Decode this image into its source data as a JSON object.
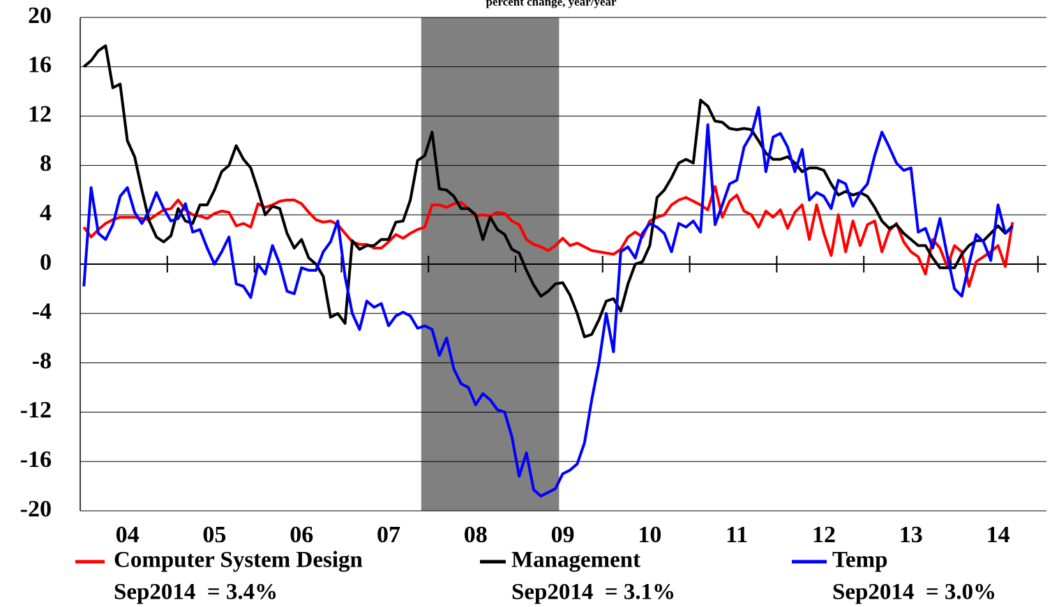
{
  "chart_data": {
    "type": "line",
    "subtitle": "percent change, year/year",
    "categories": [
      null,
      null,
      null,
      null,
      null,
      null,
      "04",
      null,
      null,
      null,
      null,
      null,
      null,
      null,
      null,
      null,
      null,
      null,
      "05",
      null,
      null,
      null,
      null,
      null,
      null,
      null,
      null,
      null,
      null,
      null,
      "06",
      null,
      null,
      null,
      null,
      null,
      null,
      null,
      null,
      null,
      null,
      null,
      "07",
      null,
      null,
      null,
      null,
      null,
      null,
      null,
      null,
      null,
      null,
      null,
      "08",
      null,
      null,
      null,
      null,
      null,
      null,
      null,
      null,
      null,
      null,
      null,
      "09",
      null,
      null,
      null,
      null,
      null,
      null,
      null,
      null,
      null,
      null,
      null,
      "10",
      null,
      null,
      null,
      null,
      null,
      null,
      null,
      null,
      null,
      null,
      null,
      "11",
      null,
      null,
      null,
      null,
      null,
      null,
      null,
      null,
      null,
      null,
      null,
      "12",
      null,
      null,
      null,
      null,
      null,
      null,
      null,
      null,
      null,
      null,
      null,
      "13",
      null,
      null,
      null,
      null,
      null,
      null,
      null,
      null,
      null,
      null,
      null,
      "14",
      null,
      null
    ],
    "shaded_range": [
      47,
      65
    ],
    "shade_color": "#808080",
    "ylim": [
      -20,
      20
    ],
    "yticks": [
      -20,
      -16,
      -12,
      -8,
      -4,
      0,
      4,
      8,
      12,
      16,
      20
    ],
    "grid": true,
    "legend": "bottom",
    "series": [
      {
        "name": "Computer System Design",
        "color": "#ff0000",
        "note": "Sep2014  = 3.4%",
        "values": [
          3.0,
          2.2,
          2.8,
          3.3,
          3.6,
          3.8,
          3.8,
          3.8,
          3.7,
          3.6,
          4.0,
          4.4,
          4.5,
          5.2,
          4.4,
          4.0,
          3.9,
          3.7,
          4.1,
          4.3,
          4.2,
          3.1,
          3.3,
          3.0,
          4.9,
          4.6,
          4.8,
          5.1,
          5.2,
          5.2,
          4.9,
          4.2,
          3.6,
          3.4,
          3.5,
          3.2,
          2.5,
          1.8,
          1.6,
          1.6,
          1.3,
          1.3,
          1.8,
          2.4,
          2.1,
          2.5,
          2.8,
          3.0,
          4.8,
          4.8,
          4.6,
          4.9,
          5.0,
          4.5,
          3.9,
          4.0,
          3.9,
          4.2,
          4.1,
          3.5,
          3.2,
          2.0,
          1.6,
          1.4,
          1.1,
          1.5,
          2.1,
          1.5,
          1.7,
          1.4,
          1.1,
          1.0,
          0.9,
          0.8,
          1.2,
          2.2,
          2.6,
          2.2,
          3.5,
          3.8,
          4.0,
          4.8,
          5.2,
          5.4,
          5.1,
          4.8,
          4.4,
          6.3,
          3.8,
          5.1,
          5.6,
          4.3,
          4.0,
          3.0,
          4.3,
          3.8,
          4.4,
          2.9,
          4.2,
          4.8,
          2.0,
          4.8,
          2.5,
          0.7,
          4.0,
          1.0,
          3.5,
          1.5,
          3.2,
          3.5,
          1.0,
          2.7,
          3.3,
          1.8,
          1.0,
          0.6,
          -0.8,
          2.0,
          1.3,
          -0.2,
          1.5,
          1.0,
          -1.8,
          0.2,
          0.6,
          1.0,
          1.5,
          -0.2,
          3.4
        ]
      },
      {
        "name": "Management",
        "color": "#000000",
        "note": "Sep2014  = 3.1%",
        "values": [
          16,
          16.5,
          17.3,
          17.7,
          14.3,
          14.6,
          10,
          8.7,
          6,
          3.5,
          2.2,
          1.8,
          2.3,
          4.5,
          3.5,
          3.3,
          4.8,
          4.8,
          6,
          7.5,
          8,
          9.6,
          8.5,
          7.8,
          6,
          4,
          4.7,
          4.5,
          2.5,
          1.3,
          2,
          0.5,
          0,
          -1,
          -4.3,
          -4,
          -4.8,
          1.9,
          1.2,
          1.5,
          1.5,
          2,
          2,
          3.4,
          3.5,
          5.2,
          8.4,
          8.8,
          10.7,
          6.1,
          6,
          5.5,
          4.5,
          4.5,
          4,
          2,
          3.8,
          2.8,
          2.4,
          1.2,
          0.9,
          -0.5,
          -1.7,
          -2.6,
          -2.2,
          -1.6,
          -1.5,
          -2.5,
          -4,
          -5.9,
          -5.7,
          -4.5,
          -3,
          -2.8,
          -3.8,
          -1.6,
          0,
          0.2,
          1.5,
          5.4,
          6,
          7,
          8.2,
          8.5,
          8.2,
          13.3,
          12.8,
          11.6,
          11.5,
          11,
          10.9,
          11,
          10.9,
          10,
          9,
          8.5,
          8.5,
          8.7,
          8.2,
          7.5,
          7.8,
          7.8,
          7.6,
          6.5,
          5.6,
          5.9,
          5.6,
          5.8,
          5.5,
          4.6,
          3.5,
          2.9,
          3.2,
          2.5,
          2,
          1.5,
          1.5,
          0.5,
          -0.3,
          -0.3,
          -0.3,
          0.8,
          1.5,
          1.9,
          1.9,
          2.5,
          3.1,
          2.5,
          3.1
        ]
      },
      {
        "name": "Temp",
        "color": "#0000ff",
        "note": "Sep2014  = 3.0%",
        "values": [
          -1.8,
          6.2,
          2.5,
          2,
          3.2,
          5.5,
          6.2,
          4.2,
          3.3,
          4.3,
          5.8,
          4.5,
          3.5,
          3.7,
          4.9,
          2.6,
          2.8,
          1.3,
          0,
          1,
          2.2,
          -1.6,
          -1.8,
          -2.7,
          0,
          -0.8,
          1.5,
          0,
          -2.2,
          -2.4,
          -0.3,
          -0.5,
          -0.5,
          1,
          1.8,
          3.5,
          -1,
          -4,
          -5.3,
          -3,
          -3.5,
          -3.2,
          -5,
          -4.2,
          -3.9,
          -4.2,
          -5.2,
          -5,
          -5.3,
          -7.4,
          -6,
          -8.5,
          -9.7,
          -10,
          -11.4,
          -10.5,
          -11,
          -11.8,
          -12,
          -14,
          -17.2,
          -15.3,
          -18.3,
          -18.8,
          -18.5,
          -18.2,
          -17,
          -16.7,
          -16.2,
          -14.5,
          -11,
          -8,
          -4,
          -7.1,
          1,
          1.4,
          0.5,
          2.5,
          3.3,
          3,
          2.5,
          1,
          3.3,
          3,
          3.5,
          2.6,
          11.3,
          3.2,
          4.8,
          6.5,
          6.8,
          9.5,
          10.5,
          12.7,
          7.5,
          10.3,
          10.6,
          9.5,
          7.5,
          9.3,
          5.2,
          5.8,
          5.5,
          4.5,
          6.8,
          6.5,
          4.7,
          5.8,
          6.5,
          8.8,
          10.7,
          9.5,
          8.2,
          7.6,
          7.8,
          2.6,
          2.9,
          1.3,
          3.7,
          0.7,
          -2,
          -2.6,
          0,
          2.4,
          1.8,
          0.3,
          4.8,
          2.5,
          3.0
        ]
      }
    ]
  }
}
